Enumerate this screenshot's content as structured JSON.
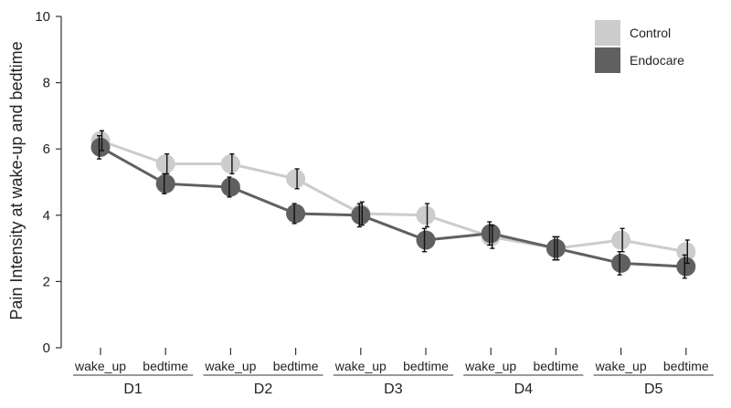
{
  "chart_data": {
    "type": "line",
    "title": "",
    "xlabel": "",
    "ylabel": "Pain Intensity at wake-up and bedtime",
    "ylim": [
      0,
      10
    ],
    "yticks": [
      0,
      2,
      4,
      6,
      8,
      10
    ],
    "grid": false,
    "legend_position": "top-right",
    "categories": [
      "wake_up",
      "bedtime",
      "wake_up",
      "bedtime",
      "wake_up",
      "bedtime",
      "wake_up",
      "bedtime",
      "wake_up",
      "bedtime"
    ],
    "groups": [
      "D1",
      "D2",
      "D3",
      "D4",
      "D5"
    ],
    "series": [
      {
        "name": "Control",
        "color": "#cccccc",
        "values": [
          6.25,
          5.55,
          5.55,
          5.1,
          4.05,
          4.0,
          3.35,
          3.0,
          3.25,
          2.9
        ],
        "error": [
          0.3,
          0.3,
          0.3,
          0.3,
          0.35,
          0.35,
          0.35,
          0.35,
          0.35,
          0.35
        ]
      },
      {
        "name": "Endocare",
        "color": "#606060",
        "values": [
          6.05,
          4.95,
          4.85,
          4.05,
          4.0,
          3.25,
          3.45,
          3.0,
          2.55,
          2.45
        ],
        "error": [
          0.35,
          0.3,
          0.3,
          0.3,
          0.35,
          0.35,
          0.35,
          0.35,
          0.35,
          0.35
        ]
      }
    ]
  }
}
